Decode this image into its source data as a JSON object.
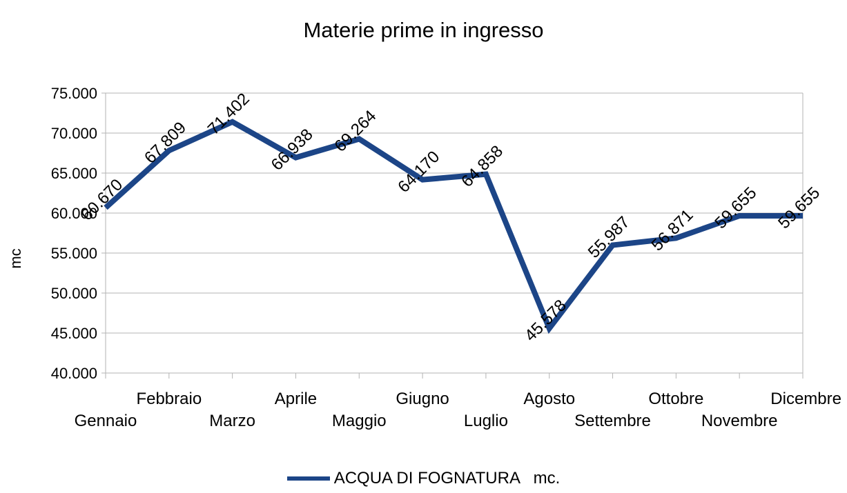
{
  "chart_data": {
    "type": "line",
    "title": "Materie prime in ingresso",
    "xlabel": "",
    "ylabel": "mc",
    "categories": [
      "Gennaio",
      "Febbraio",
      "Marzo",
      "Aprile",
      "Maggio",
      "Giugno",
      "Luglio",
      "Agosto",
      "Settembre",
      "Ottobre",
      "Novembre",
      "Dicembre"
    ],
    "series": [
      {
        "name": "ACQUA DI FOGNATURA   mc.",
        "values": [
          60670,
          67809,
          71402,
          66938,
          69264,
          64170,
          64858,
          45578,
          55987,
          56871,
          59655,
          59655
        ],
        "labels": [
          "60.670",
          "67.809",
          "71.402",
          "66.938",
          "69.264",
          "64.170",
          "64.858",
          "45.578",
          "55.987",
          "56.871",
          "59.655",
          "59.655"
        ],
        "color": "#1c4587"
      }
    ],
    "ylim": [
      40000,
      75000
    ],
    "yticks": [
      40000,
      45000,
      50000,
      55000,
      60000,
      65000,
      70000,
      75000
    ],
    "ytick_labels": [
      "40.000",
      "45.000",
      "50.000",
      "55.000",
      "60.000",
      "65.000",
      "70.000",
      "75.000"
    ],
    "grid": true,
    "legend": "bottom"
  }
}
